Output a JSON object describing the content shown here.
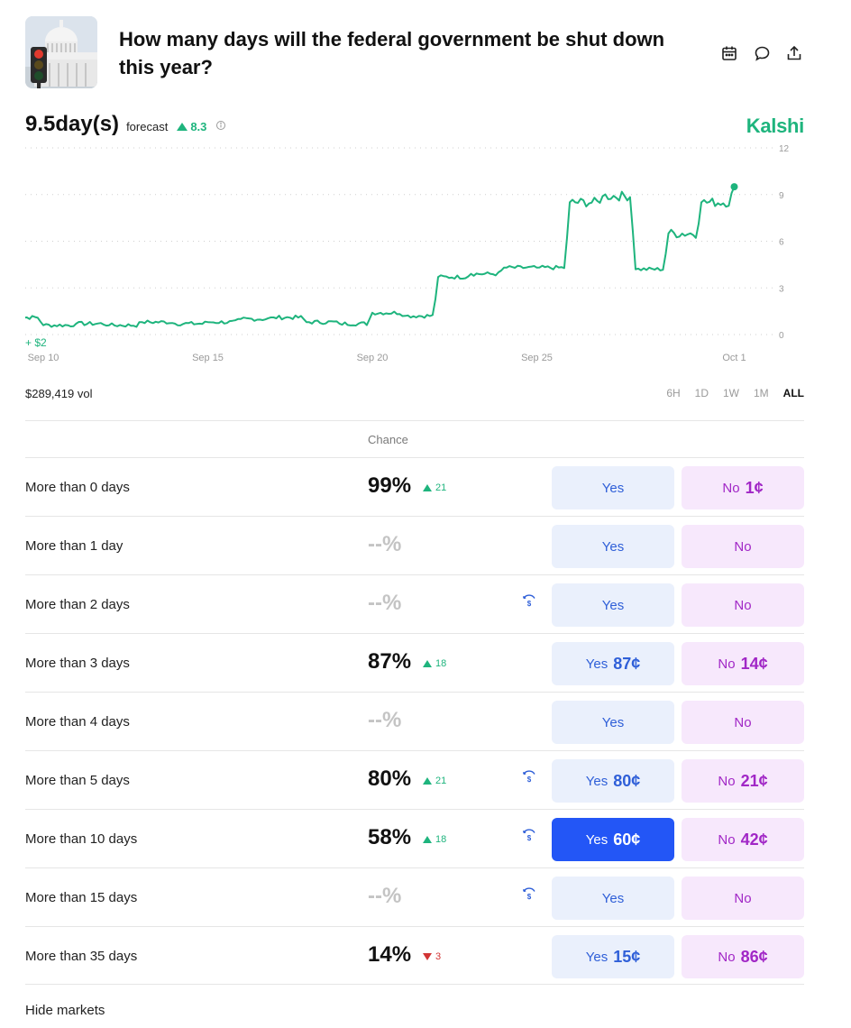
{
  "market": {
    "title": "How many days will the federal government be shut down this year?",
    "thumbnail_icon": "capitol-traffic-light-image"
  },
  "header_icons": [
    "calendar-icon",
    "comment-icon",
    "share-icon"
  ],
  "forecast": {
    "value": "9.5day(s)",
    "label": "forecast",
    "change": "8.3",
    "change_direction": "up"
  },
  "brand": "Kalshi",
  "chart_data": {
    "type": "line",
    "x_axis": {
      "tick_labels": [
        "Sep 10",
        "Sep 15",
        "Sep 20",
        "Sep 25",
        "Oct 1"
      ],
      "range": [
        "Sep 10",
        "Oct 2"
      ]
    },
    "y_axis": {
      "tick_labels": [
        "12",
        "9",
        "6",
        "3",
        "0"
      ],
      "range": [
        0,
        12
      ],
      "position": "right"
    },
    "annotation": "+ $2",
    "grid": "dotted horizontal",
    "line_color": "#1eb47d",
    "series": [
      {
        "x": [
          "Sep 9",
          "Sep 10",
          "Sep 11",
          "Sep 12",
          "Sep 13",
          "Sep 14",
          "Sep 15",
          "Sep 16",
          "Sep 17",
          "Sep 18",
          "Sep 19",
          "Sep 20",
          "Sep 21",
          "Sep 22",
          "Sep 23",
          "Sep 24",
          "Sep 25",
          "Sep 26",
          "Sep 27",
          "Sep 28",
          "Sep 29",
          "Sep 30",
          "Oct 1"
        ],
        "y": [
          1.1,
          0.6,
          0.7,
          0.6,
          0.8,
          0.7,
          0.8,
          1.0,
          1.1,
          0.8,
          0.7,
          1.4,
          1.2,
          3.7,
          3.9,
          4.3,
          4.3,
          8.5,
          8.9,
          4.2,
          6.5,
          8.5,
          9.5
        ]
      }
    ]
  },
  "volume": "$289,419 vol",
  "ranges": [
    "6H",
    "1D",
    "1W",
    "1M",
    "ALL"
  ],
  "active_range": "ALL",
  "table": {
    "chance_header": "Chance",
    "rows": [
      {
        "label": "More than 0 days",
        "chance": "99%",
        "delta": "21",
        "dir": "up",
        "reward": false,
        "yes": "Yes",
        "yes_price": "",
        "no": "No",
        "no_price": "1¢",
        "selected": false
      },
      {
        "label": "More than 1 day",
        "chance": "--%",
        "delta": "",
        "dir": "",
        "reward": false,
        "yes": "Yes",
        "yes_price": "",
        "no": "No",
        "no_price": "",
        "selected": false
      },
      {
        "label": "More than 2 days",
        "chance": "--%",
        "delta": "",
        "dir": "",
        "reward": true,
        "yes": "Yes",
        "yes_price": "",
        "no": "No",
        "no_price": "",
        "selected": false
      },
      {
        "label": "More than 3 days",
        "chance": "87%",
        "delta": "18",
        "dir": "up",
        "reward": false,
        "yes": "Yes",
        "yes_price": "87¢",
        "no": "No",
        "no_price": "14¢",
        "selected": false
      },
      {
        "label": "More than 4 days",
        "chance": "--%",
        "delta": "",
        "dir": "",
        "reward": false,
        "yes": "Yes",
        "yes_price": "",
        "no": "No",
        "no_price": "",
        "selected": false
      },
      {
        "label": "More than 5 days",
        "chance": "80%",
        "delta": "21",
        "dir": "up",
        "reward": true,
        "yes": "Yes",
        "yes_price": "80¢",
        "no": "No",
        "no_price": "21¢",
        "selected": false
      },
      {
        "label": "More than 10 days",
        "chance": "58%",
        "delta": "18",
        "dir": "up",
        "reward": true,
        "yes": "Yes",
        "yes_price": "60¢",
        "no": "No",
        "no_price": "42¢",
        "selected": true
      },
      {
        "label": "More than 15 days",
        "chance": "--%",
        "delta": "",
        "dir": "",
        "reward": true,
        "yes": "Yes",
        "yes_price": "",
        "no": "No",
        "no_price": "",
        "selected": false
      },
      {
        "label": "More than 35 days",
        "chance": "14%",
        "delta": "3",
        "dir": "down",
        "reward": false,
        "yes": "Yes",
        "yes_price": "15¢",
        "no": "No",
        "no_price": "86¢",
        "selected": false
      }
    ]
  },
  "footer": {
    "hide_markets": "Hide markets"
  },
  "colors": {
    "accent_green": "#1eb47d",
    "yes_blue": "#2f5fd8",
    "selected_blue": "#2356f6",
    "no_purple": "#a127c6",
    "down_red": "#d23535"
  }
}
